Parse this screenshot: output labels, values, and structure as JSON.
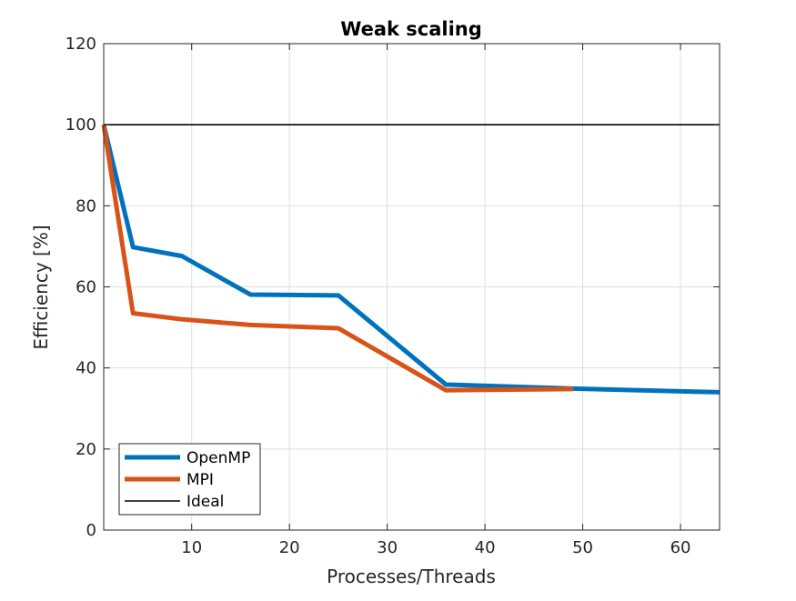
{
  "chart_data": {
    "type": "line",
    "title": "Weak scaling",
    "xlabel": "Processes/Threads",
    "ylabel": "Efficiency [%]",
    "xlim": [
      1,
      64
    ],
    "ylim": [
      0,
      120
    ],
    "xticks": [
      10,
      20,
      30,
      40,
      50,
      60
    ],
    "yticks": [
      0,
      20,
      40,
      60,
      80,
      100,
      120
    ],
    "grid": true,
    "legend_position": "bottom-left",
    "series": [
      {
        "name": "OpenMP",
        "color": "#0072BD",
        "line_width": "thick",
        "x": [
          1,
          4,
          9,
          16,
          25,
          36,
          49,
          64
        ],
        "y": [
          100,
          69.8,
          67.6,
          58.1,
          57.9,
          35.9,
          34.9,
          34.0
        ]
      },
      {
        "name": "MPI",
        "color": "#D95319",
        "line_width": "thick",
        "x": [
          1,
          4,
          9,
          16,
          25,
          36,
          49
        ],
        "y": [
          100,
          53.5,
          52.0,
          50.6,
          49.8,
          34.5,
          34.8
        ]
      },
      {
        "name": "Ideal",
        "color": "#000000",
        "line_width": "thin",
        "x": [
          1,
          64
        ],
        "y": [
          100,
          100
        ]
      }
    ]
  }
}
